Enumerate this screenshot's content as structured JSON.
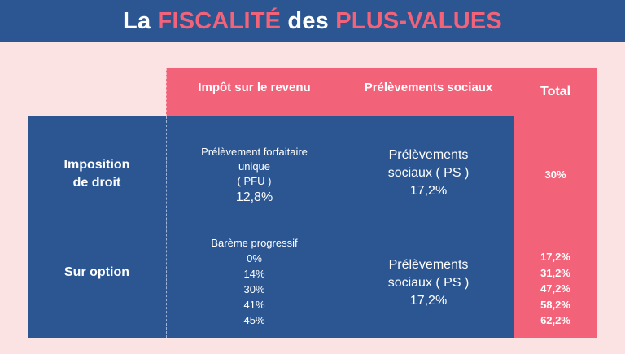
{
  "title": {
    "part1": "La ",
    "part2": "FISCALITÉ",
    "part3": " des ",
    "part4": "PLUS-VALUES"
  },
  "headers": {
    "impot": "Impôt sur le revenu",
    "ps": "Prélèvements sociaux",
    "total": "Total"
  },
  "rows": {
    "droit": {
      "label_line1": "Imposition",
      "label_line2": "de droit",
      "impot": [
        "Prélèvement forfaitaire",
        "unique",
        "( PFU )",
        "12,8%"
      ],
      "ps": [
        "Prélèvements",
        "sociaux ( PS )",
        "17,2%"
      ],
      "total": "30%"
    },
    "option": {
      "label": "Sur option",
      "impot": [
        "Barème progressif",
        "0%",
        "14%",
        "30%",
        "41%",
        "45%"
      ],
      "ps": [
        "Prélèvements",
        "sociaux ( PS )",
        "17,2%"
      ],
      "total": [
        "17,2%",
        "31,2%",
        "47,2%",
        "58,2%",
        "62,2%"
      ]
    }
  },
  "colors": {
    "blue": "#2b5692",
    "pink": "#f2637a",
    "background": "#fbe3e3"
  }
}
